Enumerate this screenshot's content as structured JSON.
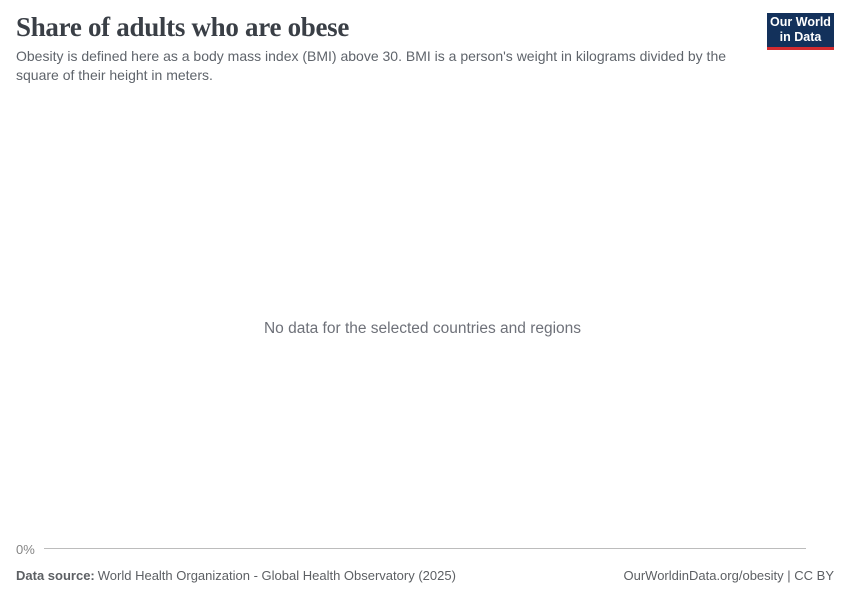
{
  "header": {
    "title": "Share of adults who are obese",
    "subtitle": "Obesity is defined here as a body mass index (BMI) above 30. BMI is a person's weight in kilograms divided by the square of their height in meters.",
    "logo": {
      "line1": "Our World",
      "line2": "in Data"
    }
  },
  "chart": {
    "no_data_message": "No data for the selected countries and regions",
    "y_axis_tick": "0%"
  },
  "chart_data": {
    "type": "line",
    "title": "Share of adults who are obese",
    "subtitle": "Obesity is defined here as a body mass index (BMI) above 30. BMI is a person's weight in kilograms divided by the square of their height in meters.",
    "series": [],
    "categories": [],
    "xlabel": "",
    "ylabel": "",
    "y_ticks_visible": [
      "0%"
    ],
    "ylim": [
      0,
      null
    ],
    "grid": false,
    "legend_position": "none",
    "annotations": [
      "No data for the selected countries and regions"
    ]
  },
  "footer": {
    "data_source_label": "Data source:",
    "data_source_value": "World Health Organization - Global Health Observatory (2025)",
    "link_url": "OurWorldinData.org/obesity",
    "separator": " | ",
    "license": "CC BY"
  },
  "colors": {
    "logo_bg": "#13315b",
    "logo_accent": "#d42b2f",
    "title_text": "#3a3f46",
    "subtitle_text": "#5f646b",
    "no_data_text": "#6e7179",
    "axis_tick_text": "#858585",
    "axis_line": "#bcbcbc",
    "footer_text": "#5d6064",
    "background": "#ffffff"
  }
}
